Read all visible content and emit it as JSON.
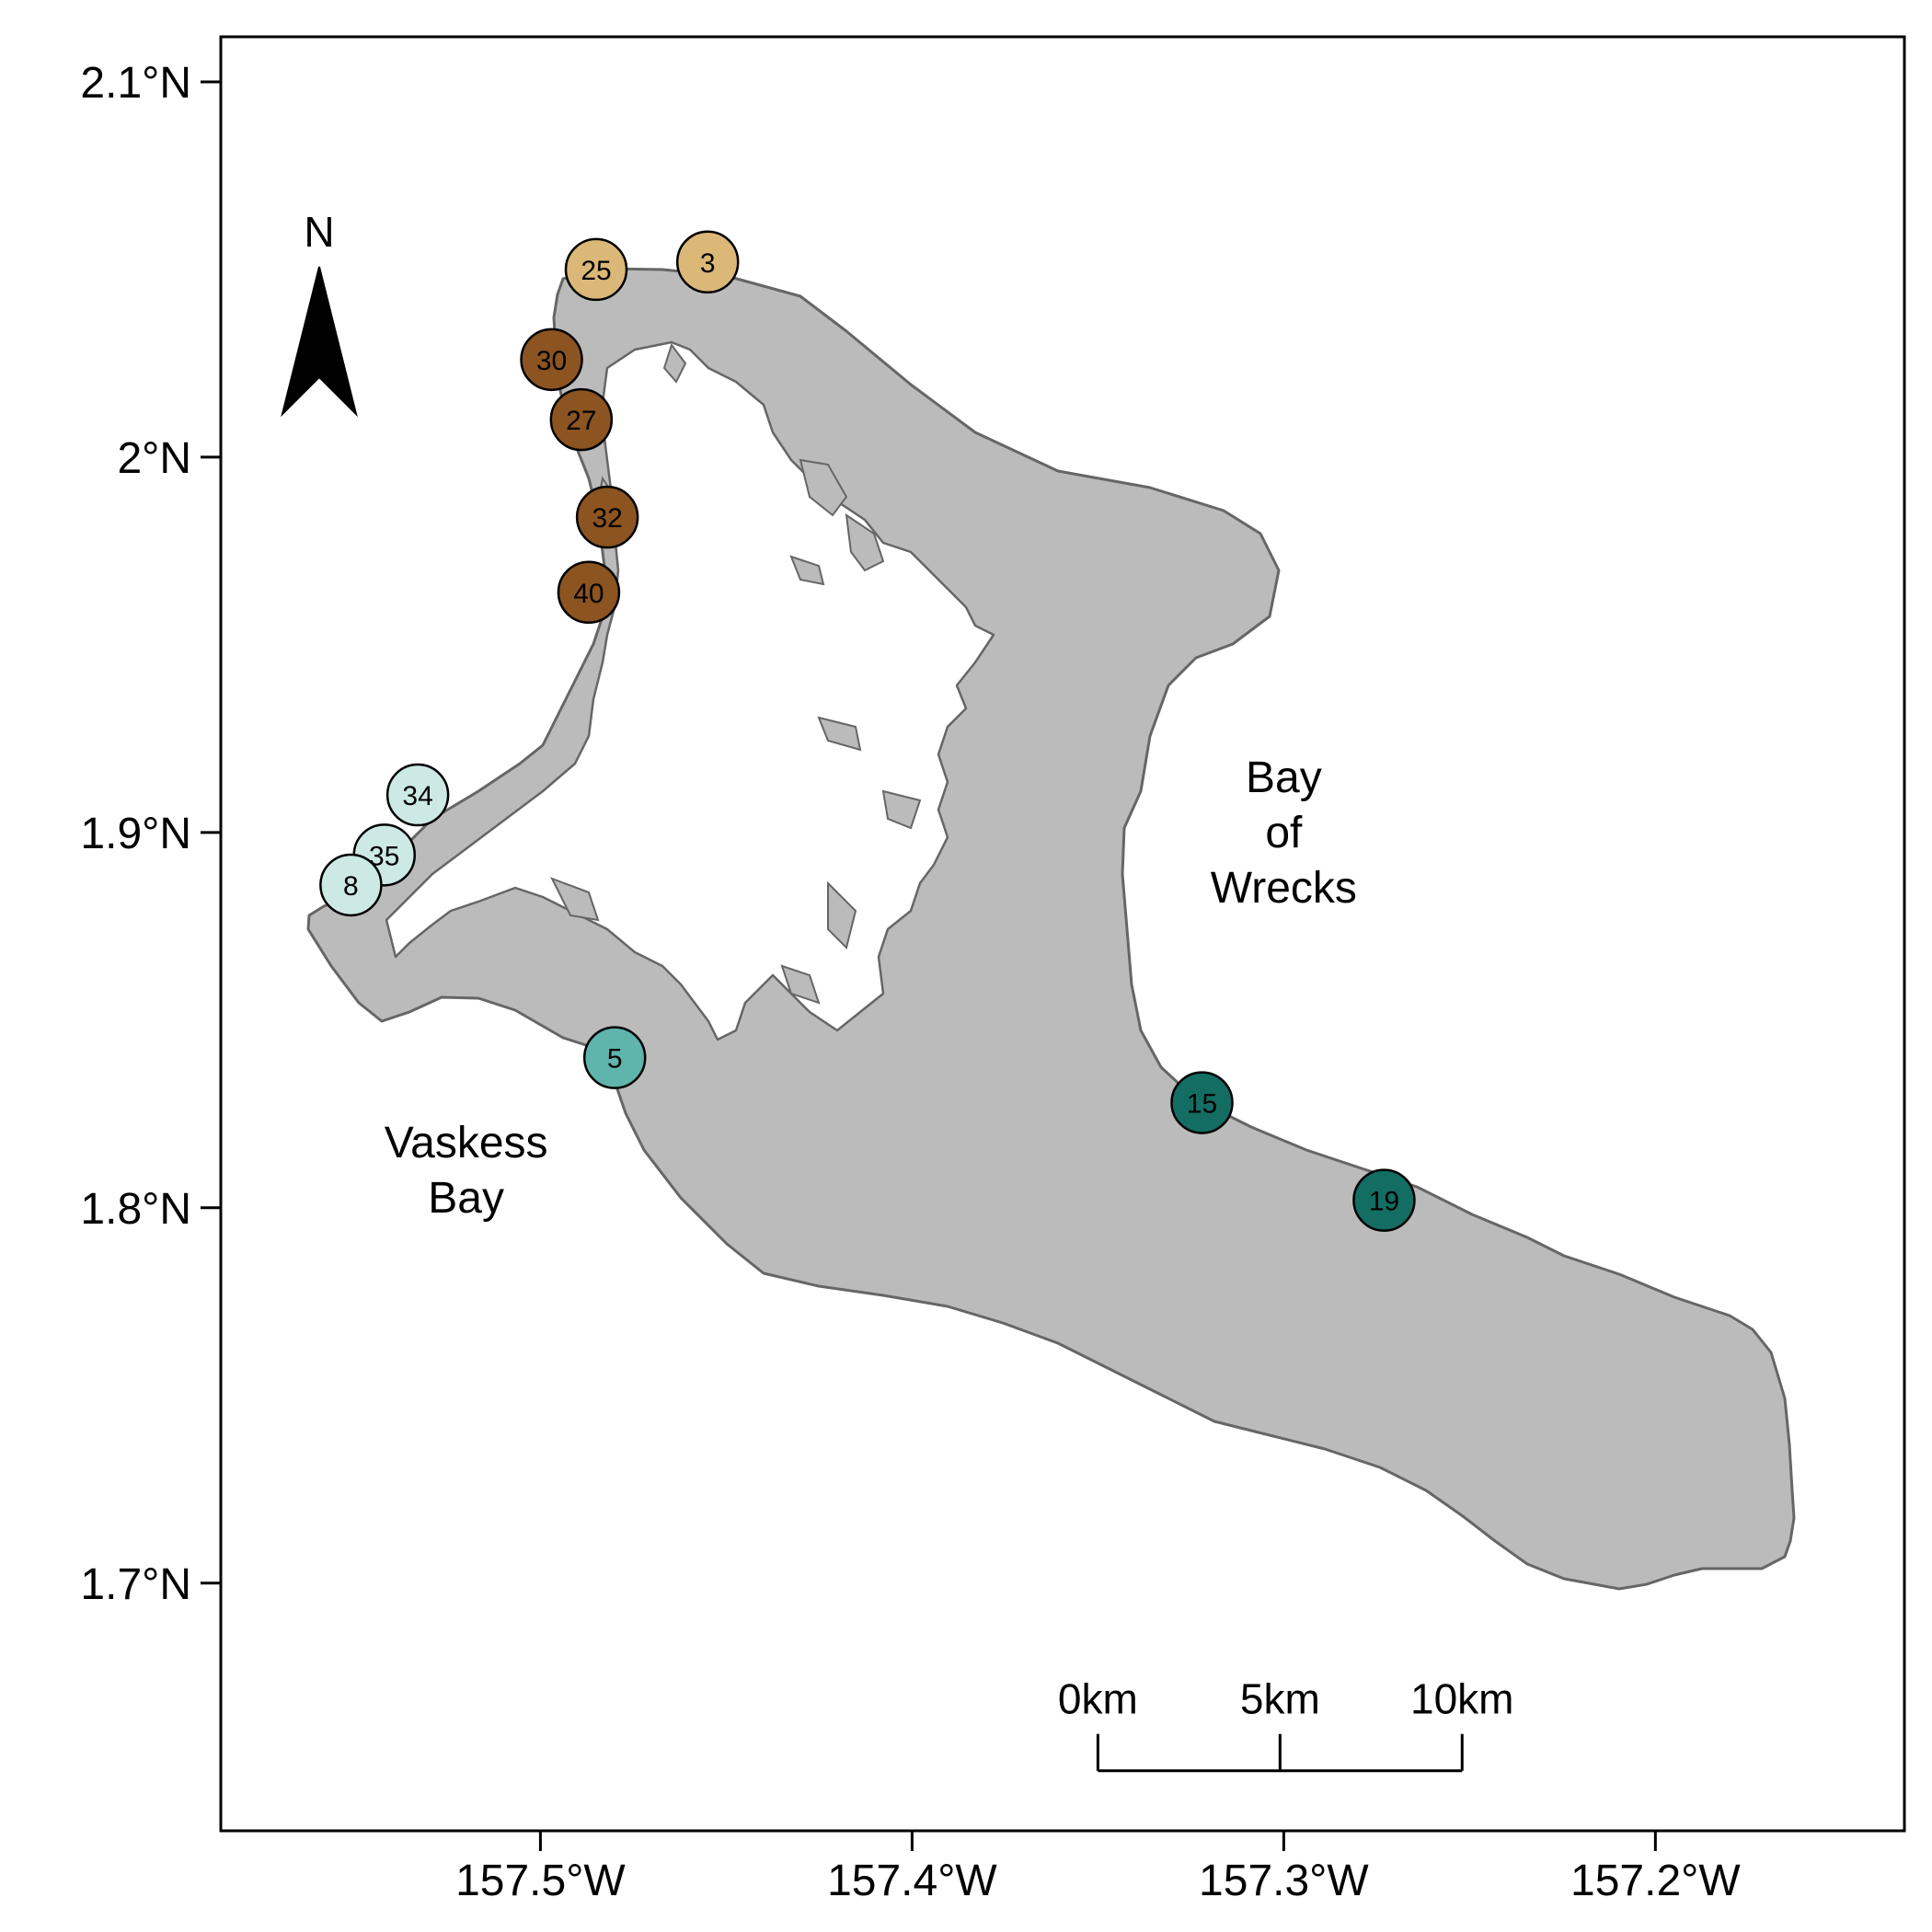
{
  "map": {
    "y_ticks": [
      {
        "value": 2.1,
        "label": "2.1°N"
      },
      {
        "value": 2.0,
        "label": "2°N"
      },
      {
        "value": 1.9,
        "label": "1.9°N"
      },
      {
        "value": 1.8,
        "label": "1.8°N"
      },
      {
        "value": 1.7,
        "label": "1.7°N"
      }
    ],
    "x_ticks": [
      {
        "value": -157.5,
        "label": "157.5°W"
      },
      {
        "value": -157.4,
        "label": "157.4°W"
      },
      {
        "value": -157.3,
        "label": "157.3°W"
      },
      {
        "value": -157.2,
        "label": "157.2°W"
      }
    ],
    "lon_range": [
      -157.586,
      -157.133
    ],
    "lat_range": [
      1.634,
      2.112
    ],
    "north_arrow_label": "N",
    "place_labels": [
      {
        "lines": [
          "Bay",
          "of",
          "Wrecks"
        ],
        "lon": -157.3,
        "lat": 1.9
      },
      {
        "lines": [
          "Vaskess",
          "Bay"
        ],
        "lon": -157.52,
        "lat": 1.81
      }
    ],
    "scale_bar": {
      "labels": [
        "0km",
        "5km",
        "10km"
      ],
      "start_lon": -157.35,
      "step_lon": 0.049,
      "lat": 1.65
    },
    "colors": {
      "land": "#bbbbbb",
      "coast": "#666666",
      "lagoon": "#ffffff",
      "light_brown": "#dbb878",
      "dark_brown": "#8b5420",
      "pale_teal": "#cce9e6",
      "mid_teal": "#5fb4ac",
      "dark_teal": "#136d63"
    },
    "sites": [
      {
        "id": "25",
        "lon": -157.485,
        "lat": 2.05,
        "color": "light_brown"
      },
      {
        "id": "3",
        "lon": -157.455,
        "lat": 2.052,
        "color": "light_brown"
      },
      {
        "id": "30",
        "lon": -157.497,
        "lat": 2.026,
        "color": "dark_brown"
      },
      {
        "id": "27",
        "lon": -157.489,
        "lat": 2.01,
        "color": "dark_brown"
      },
      {
        "id": "32",
        "lon": -157.482,
        "lat": 1.984,
        "color": "dark_brown"
      },
      {
        "id": "40",
        "lon": -157.487,
        "lat": 1.964,
        "color": "dark_brown"
      },
      {
        "id": "34",
        "lon": -157.533,
        "lat": 1.91,
        "color": "pale_teal"
      },
      {
        "id": "35",
        "lon": -157.542,
        "lat": 1.894,
        "color": "pale_teal"
      },
      {
        "id": "8",
        "lon": -157.551,
        "lat": 1.886,
        "color": "pale_teal"
      },
      {
        "id": "5",
        "lon": -157.48,
        "lat": 1.84,
        "color": "mid_teal"
      },
      {
        "id": "15",
        "lon": -157.322,
        "lat": 1.828,
        "color": "dark_teal"
      },
      {
        "id": "19",
        "lon": -157.273,
        "lat": 1.802,
        "color": "dark_teal"
      }
    ]
  }
}
